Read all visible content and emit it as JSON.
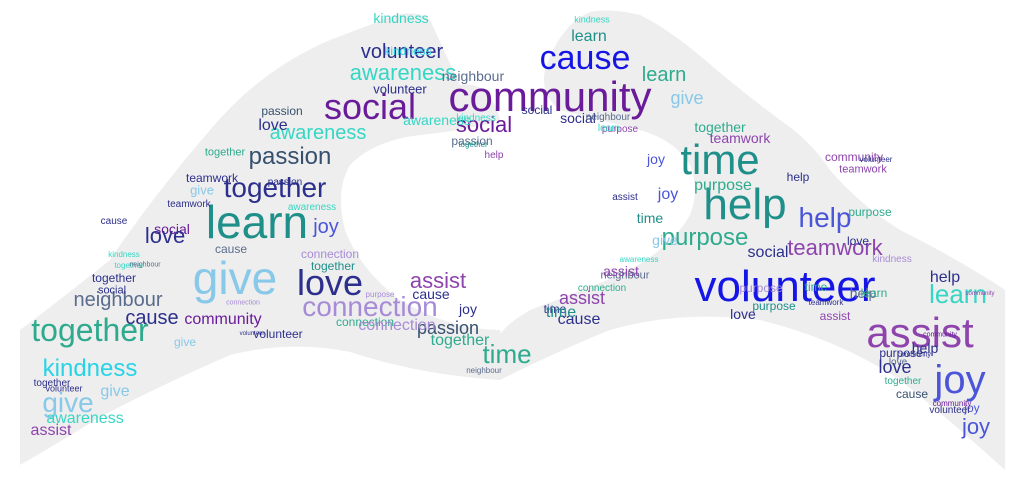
{
  "colors": {
    "background": "#ffffff",
    "hands_fill": "#eeeeee",
    "navy": "#2c2f8c",
    "blue": "#1515e6",
    "royal": "#4a55d8",
    "purple": "#6a1b9a",
    "violet": "#8e44ad",
    "lavender": "#a78bd6",
    "teal": "#1f8f8a",
    "seagreen": "#2eab8e",
    "aqua": "#36d6c4",
    "skyblue": "#88c8e8",
    "slate": "#36506e",
    "steel": "#5a6c8e",
    "cyan": "#29d3e6"
  },
  "shape": "heart-hands",
  "words": [
    {
      "text": "volunteer",
      "color": "#1515e6",
      "size": 44
    },
    {
      "text": "community",
      "color": "#6a1b9a",
      "size": 42
    },
    {
      "text": "help",
      "color": "#1f8f8a",
      "size": 44
    },
    {
      "text": "time",
      "color": "#1f8f8a",
      "size": 42
    },
    {
      "text": "learn",
      "color": "#1f8f8a",
      "size": 46
    },
    {
      "text": "give",
      "color": "#88c8e8",
      "size": 46
    },
    {
      "text": "assist",
      "color": "#8e44ad",
      "size": 42
    },
    {
      "text": "joy",
      "color": "#4a55d8",
      "size": 40
    },
    {
      "text": "social",
      "color": "#6a1b9a",
      "size": 36
    },
    {
      "text": "love",
      "color": "#2c2f8c",
      "size": 36
    },
    {
      "text": "cause",
      "color": "#1515e6",
      "size": 34
    },
    {
      "text": "together",
      "color": "#2eab8e",
      "size": 32
    },
    {
      "text": "together",
      "color": "#2c2f8c",
      "size": 28
    },
    {
      "text": "connection",
      "color": "#a78bd6",
      "size": 28
    },
    {
      "text": "passion",
      "color": "#36506e",
      "size": 24
    },
    {
      "text": "purpose",
      "color": "#2eab8e",
      "size": 24
    },
    {
      "text": "teamwork",
      "color": "#8e44ad",
      "size": 22
    },
    {
      "text": "awareness",
      "color": "#36d6c4",
      "size": 22
    },
    {
      "text": "awareness",
      "color": "#36d6c4",
      "size": 20
    },
    {
      "text": "volunteer",
      "color": "#2c2f8c",
      "size": 20
    },
    {
      "text": "social",
      "color": "#6a1b9a",
      "size": 22
    },
    {
      "text": "help",
      "color": "#4a55d8",
      "size": 28
    },
    {
      "text": "learn",
      "color": "#36d6c4",
      "size": 26
    },
    {
      "text": "kindness",
      "color": "#29d3e6",
      "size": 24
    },
    {
      "text": "neighbour",
      "color": "#5a6c8e",
      "size": 20
    },
    {
      "text": "give",
      "color": "#88c8e8",
      "size": 28
    },
    {
      "text": "time",
      "color": "#2eab8e",
      "size": 26
    },
    {
      "text": "love",
      "color": "#2c2f8c",
      "size": 18
    },
    {
      "text": "assist",
      "color": "#8e44ad",
      "size": 22
    },
    {
      "text": "cause",
      "color": "#2c2f8c",
      "size": 20
    },
    {
      "text": "cause",
      "color": "#2c2f8c",
      "size": 16
    },
    {
      "text": "community",
      "color": "#6a1b9a",
      "size": 16
    },
    {
      "text": "learn",
      "color": "#1f8f8a",
      "size": 16
    },
    {
      "text": "learn",
      "color": "#2eab8e",
      "size": 20
    },
    {
      "text": "assist",
      "color": "#8e44ad",
      "size": 18
    },
    {
      "text": "volunteer",
      "color": "#2c2f8c",
      "size": 13
    },
    {
      "text": "volunteer",
      "color": "#2c2f8c",
      "size": 12
    },
    {
      "text": "awareness",
      "color": "#36d6c4",
      "size": 14
    },
    {
      "text": "connection",
      "color": "#2eab8e",
      "size": 12
    },
    {
      "text": "purpose",
      "color": "#2eab8e",
      "size": 16
    },
    {
      "text": "purpose",
      "color": "#1f8f8a",
      "size": 12
    },
    {
      "text": "passion",
      "color": "#36506e",
      "size": 12
    },
    {
      "text": "passion",
      "color": "#2c2f8c",
      "size": 10
    },
    {
      "text": "passion",
      "color": "#5a6c8e",
      "size": 12
    },
    {
      "text": "passion",
      "color": "#36506e",
      "size": 18
    },
    {
      "text": "joy",
      "color": "#4a55d8",
      "size": 20
    },
    {
      "text": "joy",
      "color": "#4a55d8",
      "size": 16
    },
    {
      "text": "joy",
      "color": "#4a55d8",
      "size": 14
    },
    {
      "text": "joy",
      "color": "#4a55d8",
      "size": 12
    },
    {
      "text": "joy",
      "color": "#2c2f8c",
      "size": 14
    },
    {
      "text": "joy",
      "color": "#4a55d8",
      "size": 22
    },
    {
      "text": "give",
      "color": "#88c8e8",
      "size": 18
    },
    {
      "text": "give",
      "color": "#88c8e8",
      "size": 13
    },
    {
      "text": "give",
      "color": "#88c8e8",
      "size": 12
    },
    {
      "text": "give",
      "color": "#88c8e8",
      "size": 16
    },
    {
      "text": "social",
      "color": "#6a1b9a",
      "size": 14
    },
    {
      "text": "social",
      "color": "#2c2f8c",
      "size": 14
    },
    {
      "text": "social",
      "color": "#2c2f8c",
      "size": 16
    },
    {
      "text": "social",
      "color": "#2c2f8c",
      "size": 12
    },
    {
      "text": "love",
      "color": "#2c2f8c",
      "size": 12
    },
    {
      "text": "love",
      "color": "#2c2f8c",
      "size": 16
    },
    {
      "text": "love",
      "color": "#2c2f8c",
      "size": 22
    },
    {
      "text": "love",
      "color": "#5a6c8e",
      "size": 10
    },
    {
      "text": "help",
      "color": "#8e44ad",
      "size": 10
    },
    {
      "text": "help",
      "color": "#2c2f8c",
      "size": 14
    },
    {
      "text": "help",
      "color": "#2c2f8c",
      "size": 12
    },
    {
      "text": "help",
      "color": "#5a6c8e",
      "size": 14
    },
    {
      "text": "help",
      "color": "#2c2f8c",
      "size": 16
    },
    {
      "text": "together",
      "color": "#2eab8e",
      "size": 16
    },
    {
      "text": "together",
      "color": "#2eab8e",
      "size": 14
    },
    {
      "text": "together",
      "color": "#2c2f8c",
      "size": 12
    },
    {
      "text": "together",
      "color": "#2eab8e",
      "size": 11
    },
    {
      "text": "together",
      "color": "#2c2f8c",
      "size": 10
    },
    {
      "text": "together",
      "color": "#1f8f8a",
      "size": 8
    },
    {
      "text": "together",
      "color": "#36d6c4",
      "size": 8
    },
    {
      "text": "together",
      "color": "#1f8f8a",
      "size": 12
    },
    {
      "text": "together",
      "color": "#2eab8e",
      "size": 10
    },
    {
      "text": "teamwork",
      "color": "#2c2f8c",
      "size": 10
    },
    {
      "text": "teamwork",
      "color": "#8e44ad",
      "size": 14
    },
    {
      "text": "teamwork",
      "color": "#2c2f8c",
      "size": 12
    },
    {
      "text": "teamwork",
      "color": "#2c2f8c",
      "size": 8
    },
    {
      "text": "teamwork",
      "color": "#8e44ad",
      "size": 11
    },
    {
      "text": "awareness",
      "color": "#36d6c4",
      "size": 16
    },
    {
      "text": "awareness",
      "color": "#36d6c4",
      "size": 10
    },
    {
      "text": "awareness",
      "color": "#36d6c4",
      "size": 8
    },
    {
      "text": "kindness",
      "color": "#36d6c4",
      "size": 10
    },
    {
      "text": "kindness",
      "color": "#36d6c4",
      "size": 14
    },
    {
      "text": "kindness",
      "color": "#36d6c4",
      "size": 8
    },
    {
      "text": "kindness",
      "color": "#29d3e6",
      "size": 12
    },
    {
      "text": "kindness",
      "color": "#36d6c4",
      "size": 9
    },
    {
      "text": "kindness",
      "color": "#a78bd6",
      "size": 10
    },
    {
      "text": "connection",
      "color": "#a78bd6",
      "size": 16
    },
    {
      "text": "connection",
      "color": "#a78bd6",
      "size": 12
    },
    {
      "text": "connection",
      "color": "#a78bd6",
      "size": 7
    },
    {
      "text": "connection",
      "color": "#2eab8e",
      "size": 10
    },
    {
      "text": "neighbour",
      "color": "#5a6c8e",
      "size": 11
    },
    {
      "text": "neighbour",
      "color": "#5a6c8e",
      "size": 14
    },
    {
      "text": "neighbour",
      "color": "#5a6c8e",
      "size": 10
    },
    {
      "text": "neighbour",
      "color": "#5a6c8e",
      "size": 7
    },
    {
      "text": "neighbour",
      "color": "#5a6c8e",
      "size": 8
    },
    {
      "text": "community",
      "color": "#6a1b9a",
      "size": 8
    },
    {
      "text": "community",
      "color": "#8e44ad",
      "size": 12
    },
    {
      "text": "community",
      "color": "#6a1b9a",
      "size": 7
    },
    {
      "text": "community",
      "color": "#2c2f8c",
      "size": 7
    },
    {
      "text": "community",
      "color": "#8e44ad",
      "size": 6
    },
    {
      "text": "volunteer",
      "color": "#2c2f8c",
      "size": 10
    },
    {
      "text": "volunteer",
      "color": "#2c2f8c",
      "size": 8
    },
    {
      "text": "volunteer",
      "color": "#2c2f8c",
      "size": 6
    },
    {
      "text": "volunteer",
      "color": "#2c2f8c",
      "size": 9
    },
    {
      "text": "purpose",
      "color": "#2eab8e",
      "size": 12
    },
    {
      "text": "purpose",
      "color": "#2c2f8c",
      "size": 12
    },
    {
      "text": "purpose",
      "color": "#a78bd6",
      "size": 12
    },
    {
      "text": "purpose",
      "color": "#a78bd6",
      "size": 8
    },
    {
      "text": "purpose",
      "color": "#8e44ad",
      "size": 10
    },
    {
      "text": "cause",
      "color": "#2c2f8c",
      "size": 14
    },
    {
      "text": "cause",
      "color": "#36506e",
      "size": 12
    },
    {
      "text": "cause",
      "color": "#5a6c8e",
      "size": 12
    },
    {
      "text": "cause",
      "color": "#2c2f8c",
      "size": 10
    },
    {
      "text": "learn",
      "color": "#2eab8e",
      "size": 12
    },
    {
      "text": "learn",
      "color": "#36d6c4",
      "size": 10
    },
    {
      "text": "time",
      "color": "#1f8f8a",
      "size": 14
    },
    {
      "text": "time",
      "color": "#2c2f8c",
      "size": 12
    },
    {
      "text": "time",
      "color": "#1f8f8a",
      "size": 16
    },
    {
      "text": "time",
      "color": "#2eab8e",
      "size": 12
    },
    {
      "text": "give",
      "color": "#88c8e8",
      "size": 14
    },
    {
      "text": "assist",
      "color": "#8e44ad",
      "size": 14
    },
    {
      "text": "assist",
      "color": "#8e44ad",
      "size": 12
    },
    {
      "text": "assist",
      "color": "#2c2f8c",
      "size": 10
    },
    {
      "text": "assist",
      "color": "#8e44ad",
      "size": 16
    },
    {
      "text": "social",
      "color": "#2c2f8c",
      "size": 11
    },
    {
      "text": "love",
      "color": "#2c2f8c",
      "size": 14
    }
  ]
}
